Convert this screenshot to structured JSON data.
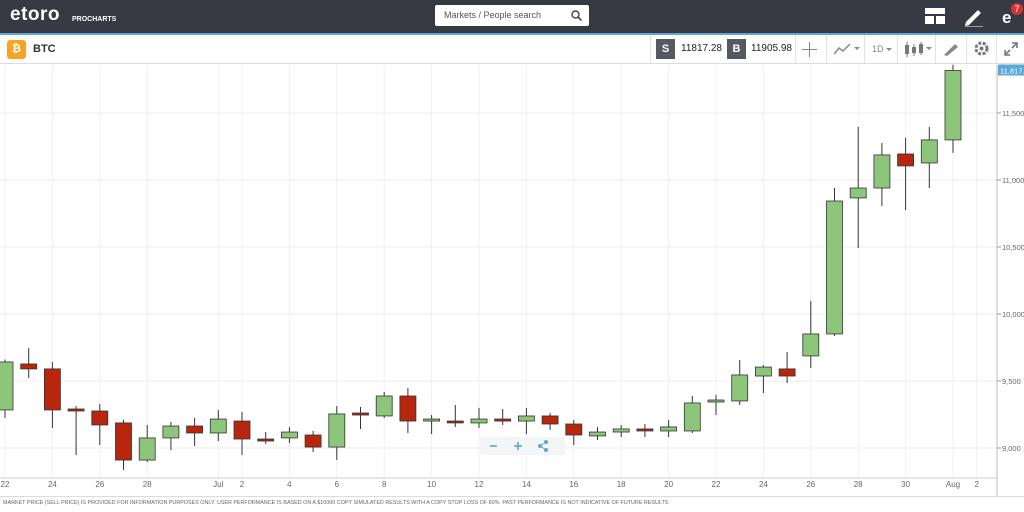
{
  "header": {
    "logo": "etoro",
    "sublogo": "PROCHARTS",
    "search_placeholder": "Markets / People search",
    "notification_count": "7"
  },
  "toolbar": {
    "symbol": "BTC",
    "sell_label": "S",
    "sell_price": "11817.28",
    "buy_label": "B",
    "buy_price": "11905.98",
    "timeframe": "1D"
  },
  "chart_data": {
    "type": "candlestick",
    "categories": [
      "22",
      null,
      "24",
      null,
      "26",
      null,
      "28",
      null,
      null,
      "Jul",
      "2",
      null,
      "4",
      null,
      "6",
      null,
      "8",
      null,
      "10",
      null,
      "12",
      null,
      "14",
      null,
      "16",
      null,
      "18",
      null,
      "20",
      null,
      "22",
      null,
      "24",
      null,
      "26",
      null,
      "28",
      null,
      "30",
      null,
      "Aug",
      "2"
    ],
    "open": [
      9284,
      9627,
      9590,
      9291,
      9276,
      9187,
      8910,
      9075,
      9164,
      9112,
      9201,
      9067,
      9075,
      9097,
      9007,
      9261,
      9239,
      9388,
      9201,
      9201,
      9187,
      9216,
      9201,
      9239,
      9179,
      9090,
      9119,
      9142,
      9127,
      9127,
      9343,
      9351,
      9537,
      9590,
      9687,
      9851,
      10866,
      10940,
      11194,
      11127,
      11299,
      null
    ],
    "high": [
      9660,
      9746,
      9642,
      9313,
      9328,
      9209,
      9172,
      9194,
      9224,
      9284,
      9269,
      9119,
      9157,
      9127,
      9313,
      9306,
      9418,
      9448,
      9246,
      9321,
      9299,
      9291,
      9299,
      9261,
      9209,
      9157,
      9172,
      9179,
      9209,
      9388,
      9396,
      9657,
      9619,
      9716,
      10097,
      10940,
      11396,
      11276,
      11314,
      11396,
      11860,
      null
    ],
    "low": [
      9224,
      9522,
      9149,
      8948,
      9022,
      8836,
      8896,
      8985,
      9015,
      9052,
      8948,
      9030,
      9037,
      8970,
      8910,
      9142,
      9224,
      9112,
      9104,
      9157,
      9149,
      9172,
      9104,
      9134,
      9022,
      9060,
      9082,
      9082,
      9082,
      9112,
      9246,
      9321,
      9410,
      9485,
      9597,
      9836,
      10493,
      10806,
      10776,
      10940,
      11202,
      null
    ],
    "close": [
      9642,
      9590,
      9284,
      9276,
      9172,
      8910,
      9075,
      9164,
      9112,
      9216,
      9067,
      9052,
      9119,
      9007,
      9254,
      9246,
      9388,
      9201,
      9216,
      9187,
      9216,
      9201,
      9239,
      9179,
      9097,
      9119,
      9142,
      9127,
      9157,
      9336,
      9358,
      9545,
      9604,
      9537,
      9851,
      10843,
      10940,
      11187,
      11105,
      11299,
      11817,
      null
    ],
    "up_color": "#8dc57b",
    "down_color": "#b8260e",
    "price_label": "11,817.2",
    "ylim": [
      8776,
      11858
    ],
    "yticks": [
      {
        "value": 9000,
        "label": "9,000"
      },
      {
        "value": 9500,
        "label": "9,500"
      },
      {
        "value": 10000,
        "label": "10,000"
      },
      {
        "value": 10500,
        "label": "10,500"
      },
      {
        "value": 11000,
        "label": "11,000"
      },
      {
        "value": 11500,
        "label": "11,500"
      }
    ],
    "grid": true
  },
  "footer": {
    "disclaimer": "MARKET PRICE (SELL PRICE) IS PROVIDED FOR INFORMATION PURPOSES ONLY. USER PERFORMANCE IS BASED ON A $10000 COPY SIMULATED RESULTS WITH A COPY STOP LOSS OF 60%. PAST PERFORMANCE IS NOT INDICATIVE OF FUTURE RESULTS"
  }
}
